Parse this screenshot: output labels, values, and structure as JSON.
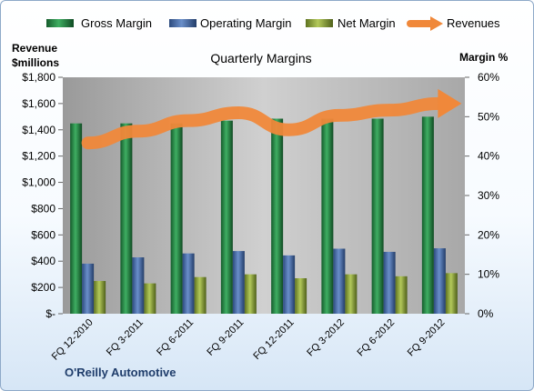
{
  "chart_data": {
    "type": "bar",
    "title": "Quarterly Margins",
    "company": "O'Reilly Automotive",
    "categories": [
      "FQ 12-2010",
      "FQ 3-2011",
      "FQ 6-2011",
      "FQ 9-2011",
      "FQ 12-2011",
      "FQ 3-2012",
      "FQ 6-2012",
      "FQ 9-2012"
    ],
    "y_left": {
      "label_line1": "Revenue",
      "label_line2": "$millions",
      "range": [
        0,
        1800
      ],
      "ticks": [
        "$-",
        "$200",
        "$400",
        "$600",
        "$800",
        "$1,000",
        "$1,200",
        "$1,400",
        "$1,600",
        "$1,800"
      ]
    },
    "y_right": {
      "label": "Margin %",
      "range": [
        0,
        60
      ],
      "ticks": [
        "0%",
        "10%",
        "20%",
        "30%",
        "40%",
        "50%",
        "60%"
      ]
    },
    "series": [
      {
        "name": "Gross Margin",
        "axis": "right",
        "type": "bar",
        "color": "#2e8b4a",
        "values": [
          48.3,
          48.3,
          48.3,
          49.0,
          49.5,
          49.5,
          49.5,
          50.0
        ]
      },
      {
        "name": "Operating Margin",
        "axis": "right",
        "type": "bar",
        "color": "#4a6ea8",
        "values": [
          12.7,
          14.3,
          15.3,
          15.9,
          14.8,
          16.5,
          15.7,
          16.6
        ]
      },
      {
        "name": "Net Margin",
        "axis": "right",
        "type": "bar",
        "color": "#8fa63a",
        "values": [
          8.3,
          7.7,
          9.3,
          10.0,
          9.0,
          10.0,
          9.5,
          10.3
        ]
      },
      {
        "name": "Revenues",
        "axis": "left",
        "type": "line",
        "color": "#f0883a",
        "values": [
          1300,
          1390,
          1470,
          1530,
          1400,
          1510,
          1550,
          1600
        ]
      }
    ],
    "legend_position": "top",
    "grid": false
  }
}
